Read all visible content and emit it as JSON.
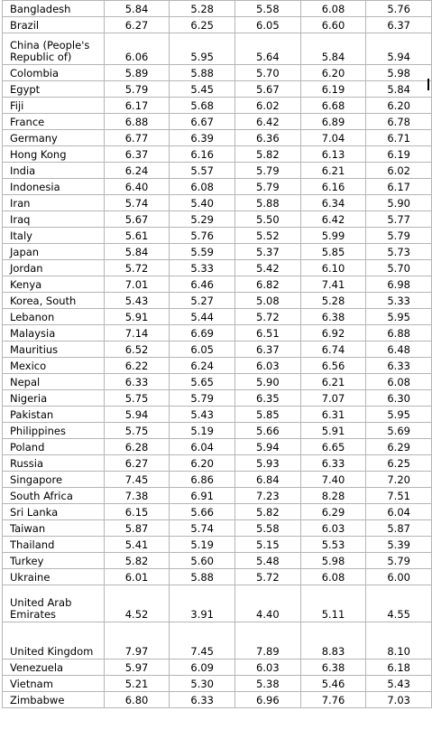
{
  "table": {
    "rows": [
      {
        "country": "Bangladesh",
        "values": [
          "5.84",
          "5.28",
          "5.58",
          "6.08",
          "5.76"
        ]
      },
      {
        "country": "Brazil",
        "values": [
          "6.27",
          "6.25",
          "6.05",
          "6.60",
          "6.37"
        ]
      },
      {
        "country": "China (People's Republic of)",
        "values": [
          "6.06",
          "5.95",
          "5.64",
          "5.84",
          "5.94"
        ]
      },
      {
        "country": "Colombia",
        "values": [
          "5.89",
          "5.88",
          "5.70",
          "6.20",
          "5.98"
        ]
      },
      {
        "country": "Egypt",
        "values": [
          "5.79",
          "5.45",
          "5.67",
          "6.19",
          "5.84"
        ]
      },
      {
        "country": "Fiji",
        "values": [
          "6.17",
          "5.68",
          "6.02",
          "6.68",
          "6.20"
        ]
      },
      {
        "country": "France",
        "values": [
          "6.88",
          "6.67",
          "6.42",
          "6.89",
          "6.78"
        ]
      },
      {
        "country": "Germany",
        "values": [
          "6.77",
          "6.39",
          "6.36",
          "7.04",
          "6.71"
        ]
      },
      {
        "country": "Hong Kong",
        "values": [
          "6.37",
          "6.16",
          "5.82",
          "6.13",
          "6.19"
        ]
      },
      {
        "country": "India",
        "values": [
          "6.24",
          "5.57",
          "5.79",
          "6.21",
          "6.02"
        ]
      },
      {
        "country": "Indonesia",
        "values": [
          "6.40",
          "6.08",
          "5.79",
          "6.16",
          "6.17"
        ]
      },
      {
        "country": "Iran",
        "values": [
          "5.74",
          "5.40",
          "5.88",
          "6.34",
          "5.90"
        ]
      },
      {
        "country": "Iraq",
        "values": [
          "5.67",
          "5.29",
          "5.50",
          "6.42",
          "5.77"
        ]
      },
      {
        "country": "Italy",
        "values": [
          "5.61",
          "5.76",
          "5.52",
          "5.99",
          "5.79"
        ]
      },
      {
        "country": "Japan",
        "values": [
          "5.84",
          "5.59",
          "5.37",
          "5.85",
          "5.73"
        ]
      },
      {
        "country": "Jordan",
        "values": [
          "5.72",
          "5.33",
          "5.42",
          "6.10",
          "5.70"
        ]
      },
      {
        "country": "Kenya",
        "values": [
          "7.01",
          "6.46",
          "6.82",
          "7.41",
          "6.98"
        ]
      },
      {
        "country": "Korea, South",
        "values": [
          "5.43",
          "5.27",
          "5.08",
          "5.28",
          "5.33"
        ]
      },
      {
        "country": "Lebanon",
        "values": [
          "5.91",
          "5.44",
          "5.72",
          "6.38",
          "5.95"
        ]
      },
      {
        "country": "Malaysia",
        "values": [
          "7.14",
          "6.69",
          "6.51",
          "6.92",
          "6.88"
        ]
      },
      {
        "country": "Mauritius",
        "values": [
          "6.52",
          "6.05",
          "6.37",
          "6.74",
          "6.48"
        ]
      },
      {
        "country": "Mexico",
        "values": [
          "6.22",
          "6.24",
          "6.03",
          "6.56",
          "6.33"
        ]
      },
      {
        "country": "Nepal",
        "values": [
          "6.33",
          "5.65",
          "5.90",
          "6.21",
          "6.08"
        ]
      },
      {
        "country": "Nigeria",
        "values": [
          "5.75",
          "5.79",
          "6.35",
          "7.07",
          "6.30"
        ]
      },
      {
        "country": "Pakistan",
        "values": [
          "5.94",
          "5.43",
          "5.85",
          "6.31",
          "5.95"
        ]
      },
      {
        "country": "Philippines",
        "values": [
          "5.75",
          "5.19",
          "5.66",
          "5.91",
          "5.69"
        ]
      },
      {
        "country": "Poland",
        "values": [
          "6.28",
          "6.04",
          "5.94",
          "6.65",
          "6.29"
        ]
      },
      {
        "country": "Russia",
        "values": [
          "6.27",
          "6.20",
          "5.93",
          "6.33",
          "6.25"
        ]
      },
      {
        "country": "Singapore",
        "values": [
          "7.45",
          "6.86",
          "6.84",
          "7.40",
          "7.20"
        ]
      },
      {
        "country": "South Africa",
        "values": [
          "7.38",
          "6.91",
          "7.23",
          "8.28",
          "7.51"
        ]
      },
      {
        "country": "Sri Lanka",
        "values": [
          "6.15",
          "5.66",
          "5.82",
          "6.29",
          "6.04"
        ]
      },
      {
        "country": "Taiwan",
        "values": [
          "5.87",
          "5.74",
          "5.58",
          "6.03",
          "5.87"
        ]
      },
      {
        "country": "Thailand",
        "values": [
          "5.41",
          "5.19",
          "5.15",
          "5.53",
          "5.39"
        ]
      },
      {
        "country": "Turkey",
        "values": [
          "5.82",
          "5.60",
          "5.48",
          "5.98",
          "5.79"
        ]
      },
      {
        "country": "Ukraine",
        "values": [
          "6.01",
          "5.88",
          "5.72",
          "6.08",
          "6.00"
        ]
      },
      {
        "country": "United Arab Emirates",
        "values": [
          "4.52",
          "3.91",
          "4.40",
          "5.11",
          "4.55"
        ]
      },
      {
        "country": "United Kingdom",
        "values": [
          "7.97",
          "7.45",
          "7.89",
          "8.83",
          "8.10"
        ]
      },
      {
        "country": "Venezuela",
        "values": [
          "5.97",
          "6.09",
          "6.03",
          "6.38",
          "6.18"
        ]
      },
      {
        "country": "Vietnam",
        "values": [
          "5.21",
          "5.30",
          "5.38",
          "5.46",
          "5.43"
        ]
      },
      {
        "country": "Zimbabwe",
        "values": [
          "6.80",
          "6.33",
          "6.96",
          "7.76",
          "7.03"
        ]
      }
    ]
  }
}
